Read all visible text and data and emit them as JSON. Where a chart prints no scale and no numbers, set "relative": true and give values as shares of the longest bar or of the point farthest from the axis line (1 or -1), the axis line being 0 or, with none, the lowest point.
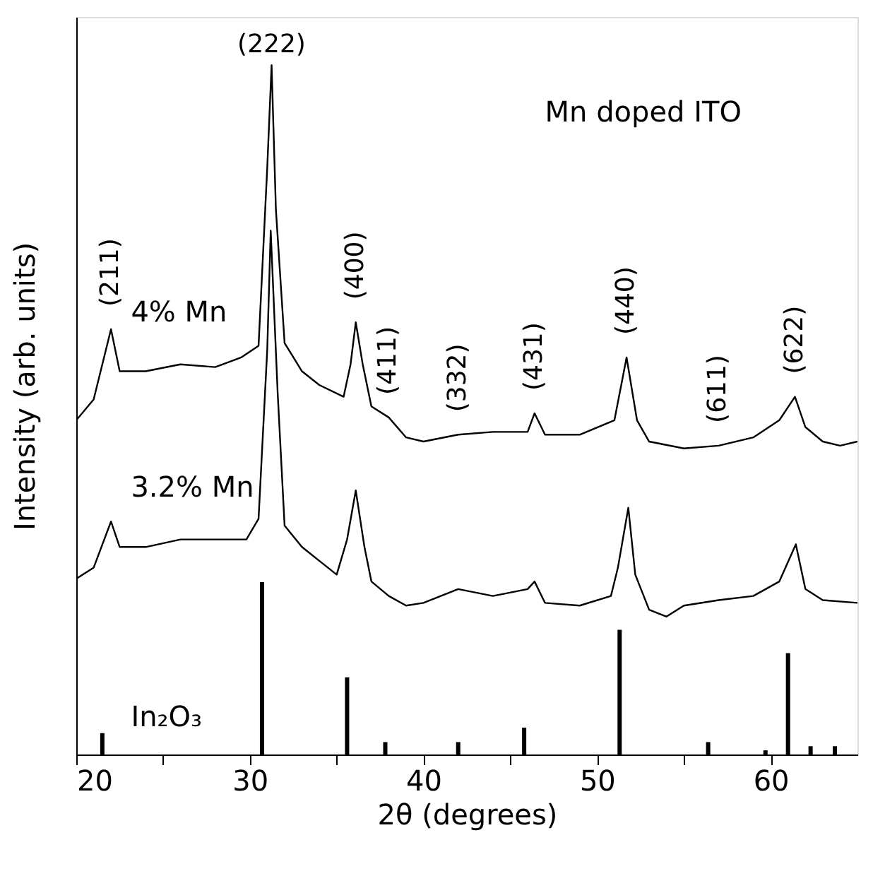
{
  "chart_data": {
    "type": "line",
    "relative": true,
    "xlabel": "2θ (degrees)",
    "ylabel": "Intensity (arb. units)",
    "xlim": [
      20,
      65
    ],
    "xticks": [
      20,
      {
        "value": 25,
        "label": null
      },
      30,
      {
        "value": 35,
        "label": null
      },
      40,
      {
        "value": 45,
        "label": null
      },
      50,
      {
        "value": 55,
        "label": null
      },
      60
    ],
    "grid": false,
    "legend": false,
    "marker": "none",
    "line_style": "solid",
    "series": [
      {
        "name": "4% Mn",
        "color": "#000000",
        "x": [
          20,
          21,
          22.0,
          22.5,
          24,
          26,
          28,
          29.5,
          30.5,
          31.0,
          31.25,
          31.5,
          32,
          33,
          34,
          35.4,
          35.8,
          36.1,
          36.5,
          37,
          38,
          39,
          40,
          42,
          44,
          46,
          46.4,
          47,
          49,
          51,
          51.7,
          52.3,
          53,
          55,
          57,
          59,
          60.5,
          61.4,
          62,
          63,
          64,
          65
        ],
        "values": [
          0.485,
          0.515,
          0.617,
          0.556,
          0.556,
          0.566,
          0.562,
          0.576,
          0.593,
          0.851,
          1.0,
          0.79,
          0.597,
          0.556,
          0.536,
          0.519,
          0.566,
          0.627,
          0.566,
          0.505,
          0.489,
          0.46,
          0.454,
          0.464,
          0.468,
          0.468,
          0.495,
          0.464,
          0.464,
          0.485,
          0.576,
          0.485,
          0.454,
          0.444,
          0.448,
          0.46,
          0.485,
          0.519,
          0.475,
          0.454,
          0.448,
          0.454
        ]
      },
      {
        "name": "3.2% Mn",
        "color": "#000000",
        "x": [
          20,
          21,
          22.0,
          22.5,
          24,
          26,
          28,
          29.8,
          30.5,
          31.0,
          31.2,
          31.6,
          32,
          33,
          34,
          35,
          35.6,
          36.1,
          36.6,
          37,
          38,
          39,
          40,
          42,
          44,
          46,
          46.4,
          47,
          49,
          50.8,
          51.2,
          51.8,
          52.2,
          53,
          54,
          55,
          57,
          59,
          60.5,
          61.45,
          62,
          63,
          65
        ],
        "values": [
          0.255,
          0.271,
          0.338,
          0.301,
          0.301,
          0.312,
          0.312,
          0.312,
          0.342,
          0.587,
          0.76,
          0.525,
          0.332,
          0.301,
          0.281,
          0.261,
          0.312,
          0.383,
          0.301,
          0.251,
          0.23,
          0.216,
          0.22,
          0.24,
          0.23,
          0.24,
          0.251,
          0.22,
          0.216,
          0.23,
          0.271,
          0.358,
          0.261,
          0.21,
          0.2,
          0.216,
          0.224,
          0.23,
          0.251,
          0.305,
          0.24,
          0.224,
          0.22
        ]
      },
      {
        "name": "In₂O₃",
        "type": "bar",
        "color": "#000000",
        "x": [
          21.5,
          30.7,
          35.6,
          37.8,
          42.0,
          45.8,
          51.3,
          56.4,
          59.7,
          61.0,
          62.3,
          63.7
        ],
        "values": [
          0.031,
          0.25,
          0.112,
          0.018,
          0.018,
          0.039,
          0.181,
          0.018,
          0.006,
          0.147,
          0.012,
          0.012
        ]
      }
    ],
    "annotations": [
      {
        "text": "(211)",
        "x": 22.0,
        "y": 0.617
      },
      {
        "text": "(222)",
        "x": 31.25,
        "y": 1.0
      },
      {
        "text": "(400)",
        "x": 36.1,
        "y": 0.627
      },
      {
        "text": "(411)",
        "x": 38,
        "y": 0.489
      },
      {
        "text": "(332)",
        "x": 42,
        "y": 0.464
      },
      {
        "text": "(431)",
        "x": 46.4,
        "y": 0.495
      },
      {
        "text": "(440)",
        "x": 51.7,
        "y": 0.576
      },
      {
        "text": "(611)",
        "x": 57,
        "y": 0.448
      },
      {
        "text": "(622)",
        "x": 61.4,
        "y": 0.519
      },
      "Mn doped ITO"
    ]
  }
}
